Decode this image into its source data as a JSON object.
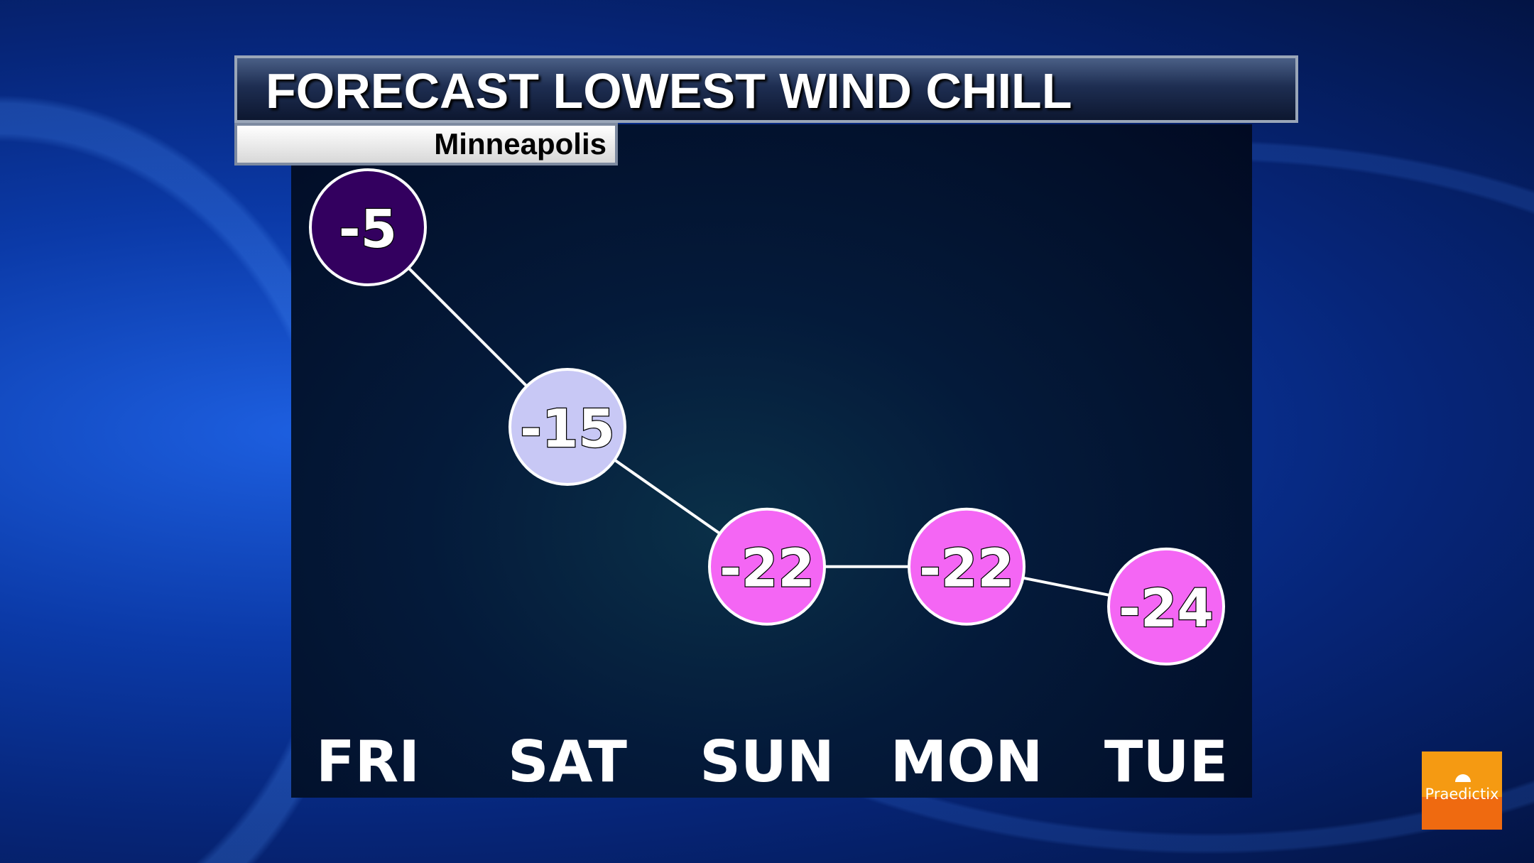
{
  "header": {
    "title": "FORECAST LOWEST WIND CHILL",
    "subtitle": "Minneapolis"
  },
  "logo": {
    "text": "Praedictix",
    "icon": "umbrella-icon",
    "color": "#f59a12"
  },
  "chart_data": {
    "type": "line",
    "title": "FORECAST LOWEST WIND CHILL",
    "subtitle": "Minneapolis",
    "categories": [
      "FRI",
      "SAT",
      "SUN",
      "MON",
      "TUE"
    ],
    "values": [
      -5,
      -15,
      -22,
      -22,
      -24
    ],
    "labels": [
      "-5",
      "-15",
      "-22",
      "-22",
      "-24"
    ],
    "marker_colors": [
      "#33005f",
      "#c8c8f5",
      "#f466f4",
      "#f466f4",
      "#f466f4"
    ],
    "grid": false,
    "line_color": "#ffffff"
  }
}
